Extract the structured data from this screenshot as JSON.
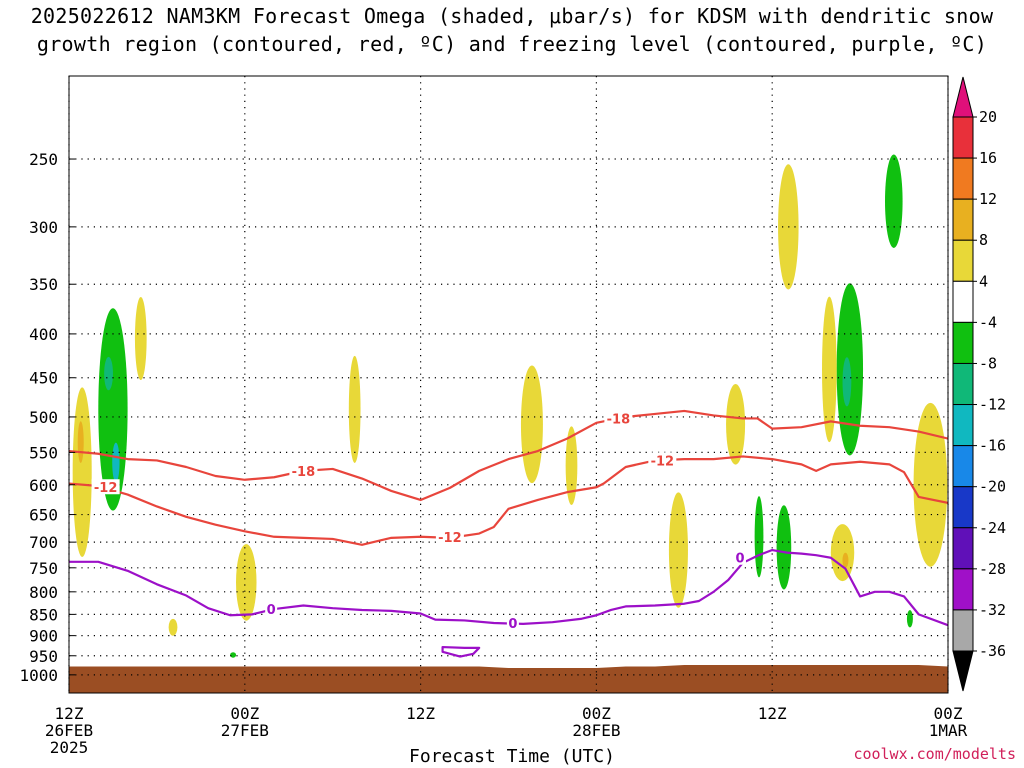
{
  "title": {
    "line1": "2025022612 NAM3KM Forecast Omega (shaded, μbar/s) for KDSM with dendritic snow",
    "line2": "growth region (contoured, red, ºC) and freezing level (contoured, purple, ºC)"
  },
  "footer": {
    "xtitle": "Forecast Time (UTC)",
    "credit": "coolwx.com/modelts"
  },
  "colors": {
    "dgz_contour": "#e8453c",
    "freezing_contour": "#9c10c8",
    "ground": "#9b4e23",
    "grid": "#000000"
  },
  "chart_data": {
    "type": "heatmap",
    "title": "2025022612 NAM3KM Forecast Omega (shaded, μbar/s) for KDSM with dendritic snow growth region (contoured, red, ºC) and freezing level (contoured, purple, ºC)",
    "xlabel": "Forecast Time (UTC)",
    "ylabel": "",
    "x_ticks": [
      {
        "hour": 0,
        "line1": "12Z",
        "line2": "26FEB",
        "line3": "2025"
      },
      {
        "hour": 12,
        "line1": "00Z",
        "line2": "27FEB",
        "line3": ""
      },
      {
        "hour": 24,
        "line1": "12Z",
        "line2": "",
        "line3": ""
      },
      {
        "hour": 36,
        "line1": "00Z",
        "line2": "28FEB",
        "line3": ""
      },
      {
        "hour": 48,
        "line1": "12Z",
        "line2": "",
        "line3": ""
      },
      {
        "hour": 60,
        "line1": "00Z",
        "line2": "1MAR",
        "line3": ""
      }
    ],
    "xlim": [
      0,
      60
    ],
    "y_scale": "log-pressure",
    "ylim_hpa": [
      1050,
      200
    ],
    "y_ticks": [
      "250",
      "300",
      "350",
      "400",
      "450",
      "500",
      "550",
      "600",
      "650",
      "700",
      "750",
      "800",
      "850",
      "900",
      "950",
      "1000"
    ],
    "grid": true,
    "colorbar": {
      "labels": [
        "20",
        "16",
        "12",
        "8",
        "4",
        "-4",
        "-8",
        "-12",
        "-16",
        "-20",
        "-24",
        "-28",
        "-32",
        "-36"
      ],
      "levels": [
        20,
        16,
        12,
        8,
        4,
        -4,
        -8,
        -12,
        -16,
        -20,
        -24,
        -28,
        -32,
        -36
      ],
      "colors": [
        "#e8303a",
        "#f07a20",
        "#e8b020",
        "#e8d838",
        "#ffffff",
        "#10c010",
        "#10b878",
        "#10b8c0",
        "#1888e8",
        "#1838c8",
        "#6010b8",
        "#a010c8",
        "#a8a8a8"
      ],
      "top_arrow_color": "#e0107a",
      "bottom_arrow_color": "#000000"
    },
    "ground_level_hpa": 970,
    "contours": [
      {
        "name": "-18",
        "label": "-18",
        "field": "dgz",
        "color": "#e8453c",
        "points": [
          [
            0,
            548
          ],
          [
            2,
            552
          ],
          [
            4,
            560
          ],
          [
            6,
            562
          ],
          [
            8,
            572
          ],
          [
            10,
            586
          ],
          [
            12,
            592
          ],
          [
            14,
            588
          ],
          [
            16,
            578
          ],
          [
            18,
            575
          ],
          [
            20,
            590
          ],
          [
            22,
            610
          ],
          [
            24,
            625
          ],
          [
            26,
            605
          ],
          [
            28,
            578
          ],
          [
            30,
            560
          ],
          [
            32,
            548
          ],
          [
            34,
            530
          ],
          [
            36,
            508
          ],
          [
            38,
            500
          ],
          [
            40,
            496
          ],
          [
            42,
            492
          ],
          [
            44,
            498
          ],
          [
            46,
            502
          ],
          [
            47,
            502
          ],
          [
            48,
            516
          ],
          [
            50,
            514
          ],
          [
            52,
            506
          ],
          [
            54,
            512
          ],
          [
            56,
            514
          ],
          [
            58,
            520
          ],
          [
            60,
            530
          ]
        ],
        "label_at": [
          [
            16,
            578
          ],
          [
            37.5,
            502
          ]
        ]
      },
      {
        "name": "-12",
        "label": "-12",
        "field": "dgz",
        "color": "#e8453c",
        "points": [
          [
            0,
            598
          ],
          [
            2,
            602
          ],
          [
            4,
            616
          ],
          [
            6,
            636
          ],
          [
            8,
            654
          ],
          [
            10,
            668
          ],
          [
            12,
            680
          ],
          [
            14,
            690
          ],
          [
            16,
            692
          ],
          [
            18,
            694
          ],
          [
            20,
            705
          ],
          [
            22,
            692
          ],
          [
            24,
            690
          ],
          [
            26,
            692
          ],
          [
            28,
            684
          ],
          [
            29,
            672
          ],
          [
            30,
            640
          ],
          [
            32,
            625
          ],
          [
            34,
            612
          ],
          [
            36,
            604
          ],
          [
            36.5,
            598
          ],
          [
            38,
            572
          ],
          [
            40,
            562
          ],
          [
            42,
            560
          ],
          [
            44,
            560
          ],
          [
            46,
            556
          ],
          [
            48,
            560
          ],
          [
            50,
            568
          ],
          [
            51,
            578
          ],
          [
            52,
            568
          ],
          [
            54,
            564
          ],
          [
            56,
            568
          ],
          [
            57,
            580
          ],
          [
            58,
            620
          ],
          [
            60,
            630
          ]
        ],
        "label_at": [
          [
            2.5,
            604
          ],
          [
            26,
            690
          ],
          [
            40.5,
            562
          ]
        ]
      },
      {
        "name": "0",
        "label": "0",
        "field": "freezing",
        "color": "#9c10c8",
        "points": [
          [
            0,
            738
          ],
          [
            2,
            738
          ],
          [
            4,
            756
          ],
          [
            6,
            784
          ],
          [
            8,
            808
          ],
          [
            9.5,
            836
          ],
          [
            11,
            852
          ],
          [
            12.5,
            850
          ],
          [
            14,
            838
          ],
          [
            16,
            830
          ],
          [
            18,
            836
          ],
          [
            20,
            840
          ],
          [
            22,
            842
          ],
          [
            24,
            848
          ],
          [
            25,
            862
          ],
          [
            27,
            864
          ],
          [
            29,
            870
          ],
          [
            31,
            872
          ],
          [
            33,
            868
          ],
          [
            35,
            860
          ],
          [
            36,
            852
          ],
          [
            37,
            840
          ],
          [
            38,
            832
          ],
          [
            40,
            830
          ],
          [
            42,
            826
          ],
          [
            43,
            820
          ],
          [
            44,
            800
          ],
          [
            45,
            775
          ],
          [
            46,
            740
          ],
          [
            47,
            726
          ],
          [
            48,
            715
          ],
          [
            49,
            720
          ],
          [
            50,
            722
          ],
          [
            51,
            725
          ],
          [
            52,
            730
          ],
          [
            53,
            752
          ],
          [
            54,
            810
          ],
          [
            55,
            800
          ],
          [
            56,
            800
          ],
          [
            57,
            810
          ],
          [
            58,
            850
          ],
          [
            60,
            875
          ]
        ],
        "label_at": [
          [
            13.8,
            838
          ],
          [
            30.3,
            870
          ],
          [
            45.8,
            730
          ]
        ]
      },
      {
        "name": "0-closed",
        "label": "",
        "field": "freezing",
        "color": "#9c10c8",
        "closed": true,
        "points": [
          [
            25.5,
            928
          ],
          [
            27,
            930
          ],
          [
            28,
            930
          ],
          [
            27.6,
            945
          ],
          [
            26.7,
            952
          ],
          [
            25.5,
            940
          ]
        ]
      }
    ],
    "shaded_regions": [
      {
        "value_min": 4,
        "value_max": 8,
        "color": "#e8d838",
        "center": [
          0.9,
          580
        ],
        "size": [
          1.3,
          260
        ]
      },
      {
        "value_min": 8,
        "value_max": 12,
        "color": "#e8b020",
        "center": [
          0.8,
          535
        ],
        "size": [
          0.4,
          60
        ]
      },
      {
        "value_min": -8,
        "value_max": -4,
        "color": "#10c010",
        "center": [
          3.0,
          490
        ],
        "size": [
          2.0,
          260
        ]
      },
      {
        "value_min": -12,
        "value_max": -8,
        "color": "#10b878",
        "center": [
          2.7,
          445
        ],
        "size": [
          0.6,
          40
        ]
      },
      {
        "value_min": -16,
        "value_max": -12,
        "color": "#10b8c0",
        "center": [
          3.2,
          565
        ],
        "size": [
          0.5,
          60
        ]
      },
      {
        "value_min": 4,
        "value_max": 8,
        "color": "#e8d838",
        "center": [
          4.9,
          405
        ],
        "size": [
          0.8,
          90
        ]
      },
      {
        "value_min": 4,
        "value_max": 8,
        "color": "#e8d838",
        "center": [
          7.1,
          880
        ],
        "size": [
          0.6,
          40
        ]
      },
      {
        "value_min": 4,
        "value_max": 8,
        "color": "#e8d838",
        "center": [
          12.1,
          780
        ],
        "size": [
          1.4,
          160
        ]
      },
      {
        "value_min": -8,
        "value_max": -4,
        "color": "#10c010",
        "center": [
          11.2,
          948
        ],
        "size": [
          0.4,
          14
        ]
      },
      {
        "value_min": 4,
        "value_max": 8,
        "color": "#e8d838",
        "center": [
          19.5,
          490
        ],
        "size": [
          0.8,
          140
        ]
      },
      {
        "value_min": 4,
        "value_max": 8,
        "color": "#e8d838",
        "center": [
          31.6,
          510
        ],
        "size": [
          1.5,
          160
        ]
      },
      {
        "value_min": 4,
        "value_max": 8,
        "color": "#e8d838",
        "center": [
          34.3,
          570
        ],
        "size": [
          0.8,
          120
        ]
      },
      {
        "value_min": 4,
        "value_max": 8,
        "color": "#e8d838",
        "center": [
          41.6,
          715
        ],
        "size": [
          1.3,
          220
        ]
      },
      {
        "value_min": 4,
        "value_max": 8,
        "color": "#e8d838",
        "center": [
          45.5,
          510
        ],
        "size": [
          1.3,
          110
        ]
      },
      {
        "value_min": -8,
        "value_max": -4,
        "color": "#10c010",
        "center": [
          47.1,
          690
        ],
        "size": [
          0.6,
          150
        ]
      },
      {
        "value_min": -8,
        "value_max": -4,
        "color": "#10c010",
        "center": [
          48.8,
          710
        ],
        "size": [
          1.0,
          160
        ]
      },
      {
        "value_min": 4,
        "value_max": 8,
        "color": "#e8d838",
        "center": [
          49.1,
          300
        ],
        "size": [
          1.4,
          100
        ]
      },
      {
        "value_min": -8,
        "value_max": -4,
        "color": "#10c010",
        "center": [
          53.3,
          440
        ],
        "size": [
          1.8,
          200
        ]
      },
      {
        "value_min": -12,
        "value_max": -8,
        "color": "#10b878",
        "center": [
          53.1,
          455
        ],
        "size": [
          0.6,
          60
        ]
      },
      {
        "value_min": 4,
        "value_max": 8,
        "color": "#e8d838",
        "center": [
          51.9,
          440
        ],
        "size": [
          1.0,
          170
        ]
      },
      {
        "value_min": 4,
        "value_max": 8,
        "color": "#e8d838",
        "center": [
          52.8,
          720
        ],
        "size": [
          1.6,
          110
        ]
      },
      {
        "value_min": 8,
        "value_max": 12,
        "color": "#e8b020",
        "center": [
          53.0,
          735
        ],
        "size": [
          0.3,
          30
        ]
      },
      {
        "value_min": -8,
        "value_max": -4,
        "color": "#10c010",
        "center": [
          56.3,
          280
        ],
        "size": [
          1.2,
          70
        ]
      },
      {
        "value_min": 4,
        "value_max": 8,
        "color": "#e8d838",
        "center": [
          58.8,
          600
        ],
        "size": [
          2.3,
          260
        ]
      },
      {
        "value_min": -8,
        "value_max": -4,
        "color": "#10c010",
        "center": [
          57.4,
          860
        ],
        "size": [
          0.4,
          40
        ]
      }
    ]
  }
}
